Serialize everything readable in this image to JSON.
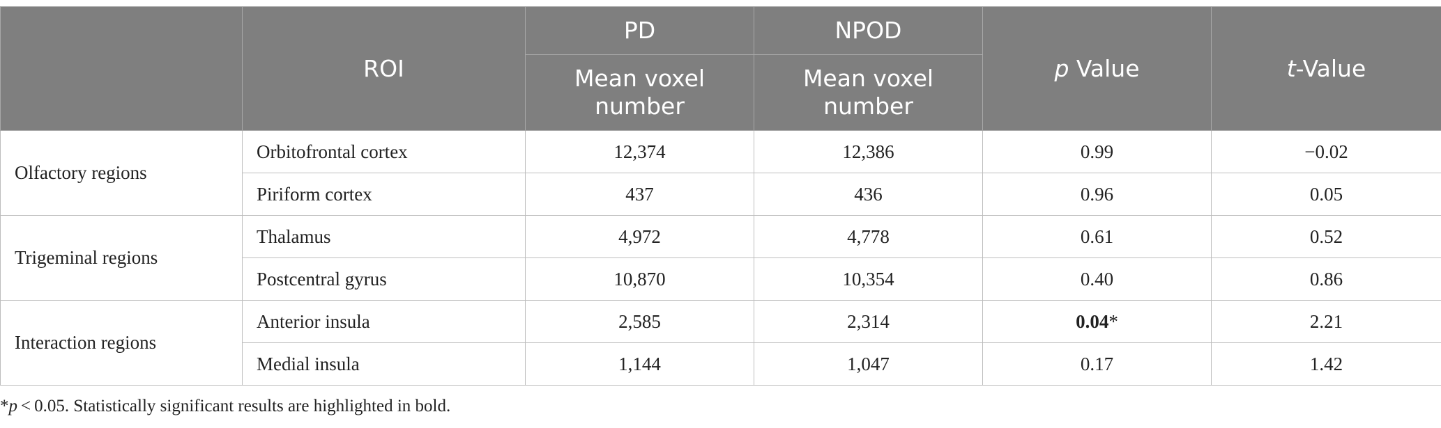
{
  "header": {
    "roi": "ROI",
    "groups": [
      "PD",
      "NPOD"
    ],
    "subheaders": [
      "Mean voxel number",
      "Mean voxel number"
    ],
    "p_value": {
      "italic": "p",
      "rest": " Value"
    },
    "t_value": {
      "italic": "t",
      "rest": "-Value"
    }
  },
  "table": {
    "groups": [
      {
        "label": "Olfactory regions",
        "rows": [
          {
            "roi": "Orbitofrontal cortex",
            "pd": "12,374",
            "npod": "12,386",
            "p": "0.99",
            "t": "−0.02"
          },
          {
            "roi": "Piriform cortex",
            "pd": "437",
            "npod": "436",
            "p": "0.96",
            "t": "0.05"
          }
        ]
      },
      {
        "label": "Trigeminal regions",
        "rows": [
          {
            "roi": "Thalamus",
            "pd": "4,972",
            "npod": "4,778",
            "p": "0.61",
            "t": "0.52"
          },
          {
            "roi": "Postcentral gyrus",
            "pd": "10,870",
            "npod": "10,354",
            "p": "0.40",
            "t": "0.86"
          }
        ]
      },
      {
        "label": "Interaction regions",
        "rows": [
          {
            "roi": "Anterior insula",
            "pd": "2,585",
            "npod": "2,314",
            "p": "0.04",
            "p_mark": "*",
            "t": "2.21"
          },
          {
            "roi": "Medial insula",
            "pd": "1,144",
            "npod": "1,047",
            "p": "0.17",
            "t": "1.42"
          }
        ]
      }
    ]
  },
  "footnote": {
    "mark": "*",
    "italic": "p",
    "rest": " < 0.05. Statistically significant results are highlighted in bold."
  }
}
